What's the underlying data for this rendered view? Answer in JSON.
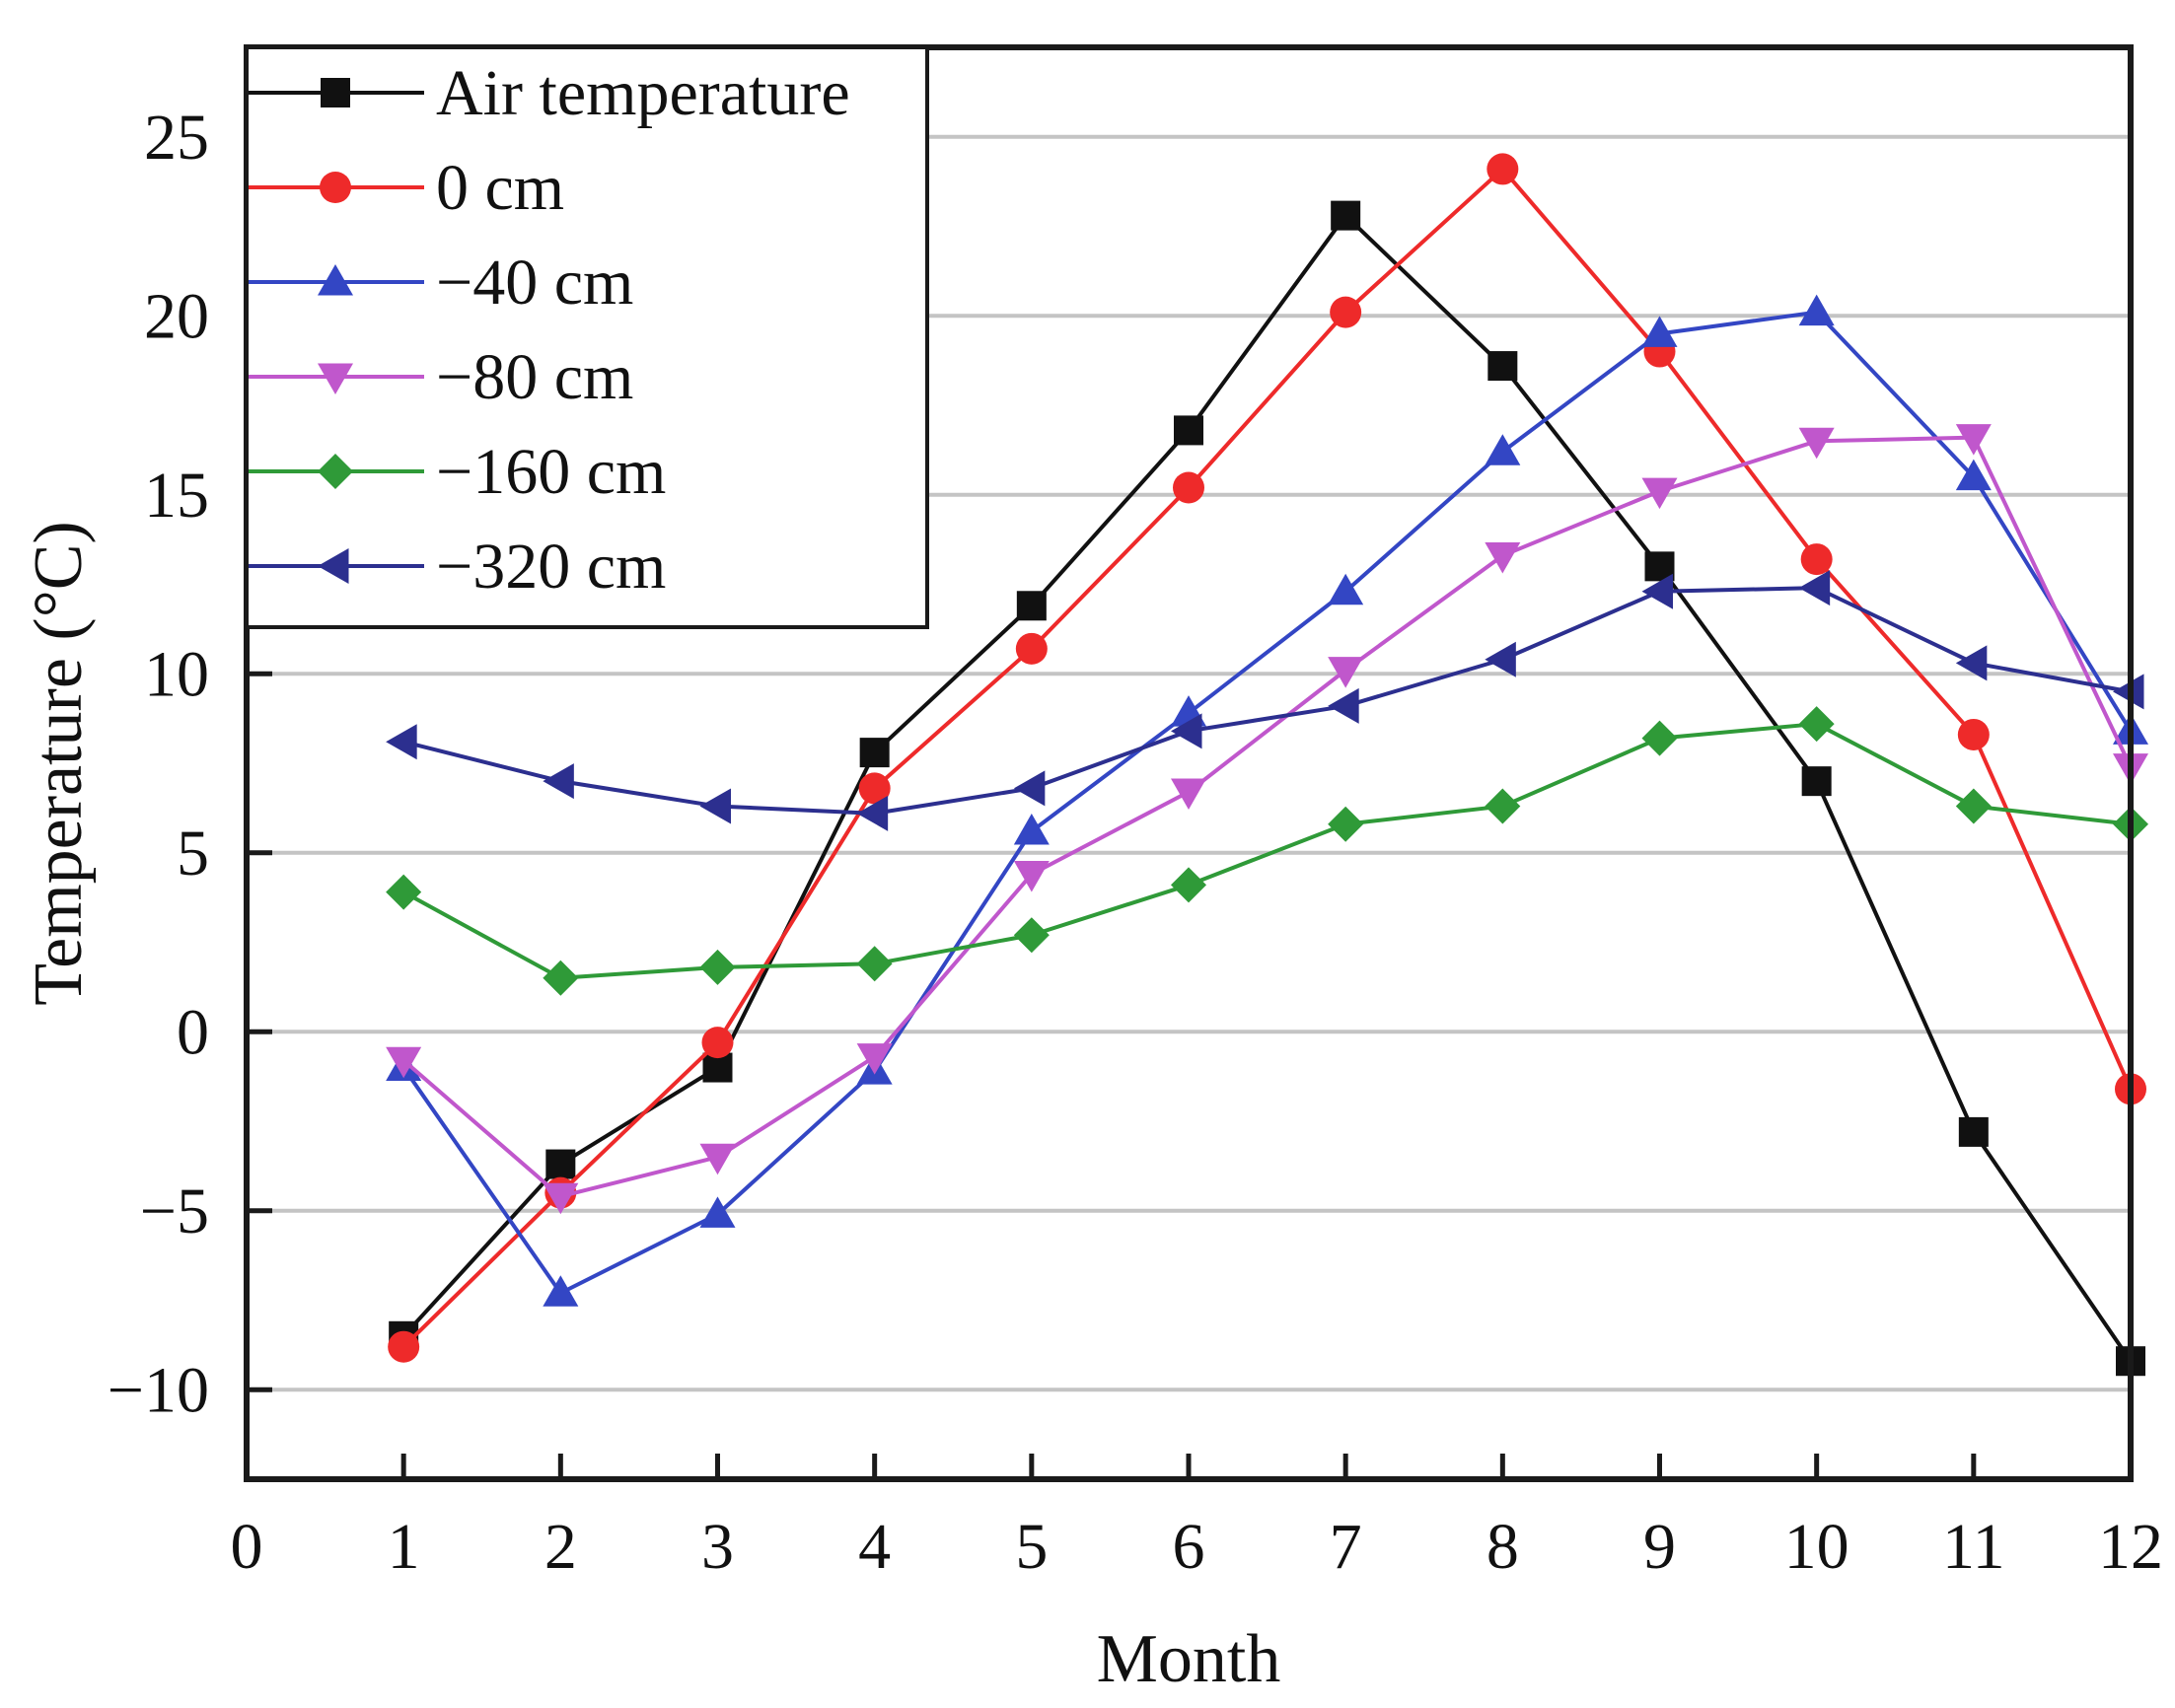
{
  "chart_data": {
    "type": "line",
    "title": "",
    "xlabel": "Month",
    "ylabel": "Temperature (°C)",
    "xlim": [
      0,
      12
    ],
    "ylim": [
      -12.5,
      27.5
    ],
    "xticks": [
      0,
      1,
      2,
      3,
      4,
      5,
      6,
      7,
      8,
      9,
      10,
      11,
      12
    ],
    "yticks": [
      -10,
      -5,
      0,
      5,
      10,
      15,
      20,
      25
    ],
    "xtick_labels": [
      "0",
      "1",
      "2",
      "3",
      "4",
      "5",
      "6",
      "7",
      "8",
      "9",
      "10",
      "11",
      "12"
    ],
    "ytick_labels": [
      "−10",
      "−5",
      "0",
      "5",
      "10",
      "15",
      "20",
      "25"
    ],
    "grid": "horizontal",
    "legend_position": "top-left",
    "x": [
      1,
      2,
      3,
      4,
      5,
      6,
      7,
      8,
      9,
      10,
      11,
      12
    ],
    "series": [
      {
        "name": "Air temperature",
        "color": "#111111",
        "marker": "square",
        "values": [
          -8.5,
          -3.7,
          -1.0,
          7.8,
          11.9,
          16.8,
          22.8,
          18.6,
          13.0,
          7.0,
          -2.8,
          -9.2
        ]
      },
      {
        "name": "0 cm",
        "color": "#ee2a2a",
        "marker": "circle",
        "values": [
          -8.8,
          -4.5,
          -0.3,
          6.8,
          10.7,
          15.2,
          20.1,
          24.1,
          19.0,
          13.2,
          8.3,
          -1.6
        ]
      },
      {
        "name": "−40 cm",
        "color": "#3346c4",
        "marker": "triangle-up",
        "values": [
          -1.0,
          -7.3,
          -5.1,
          -1.1,
          5.6,
          8.9,
          12.3,
          16.2,
          19.5,
          20.1,
          15.5,
          8.4
        ]
      },
      {
        "name": "−80 cm",
        "color": "#c057cc",
        "marker": "triangle-down",
        "values": [
          -0.8,
          -4.6,
          -3.5,
          -0.7,
          4.4,
          6.7,
          10.1,
          13.3,
          15.1,
          16.5,
          16.6,
          7.4
        ]
      },
      {
        "name": "−160 cm",
        "color": "#2f9a38",
        "marker": "diamond",
        "values": [
          3.9,
          1.5,
          1.8,
          1.9,
          2.7,
          4.1,
          5.8,
          6.3,
          8.2,
          8.6,
          6.3,
          5.8
        ]
      },
      {
        "name": "−320 cm",
        "color": "#2c2f8f",
        "marker": "triangle-left",
        "values": [
          8.1,
          7.0,
          6.3,
          6.1,
          6.8,
          8.4,
          9.1,
          10.4,
          12.3,
          12.4,
          10.3,
          9.5
        ]
      }
    ]
  }
}
